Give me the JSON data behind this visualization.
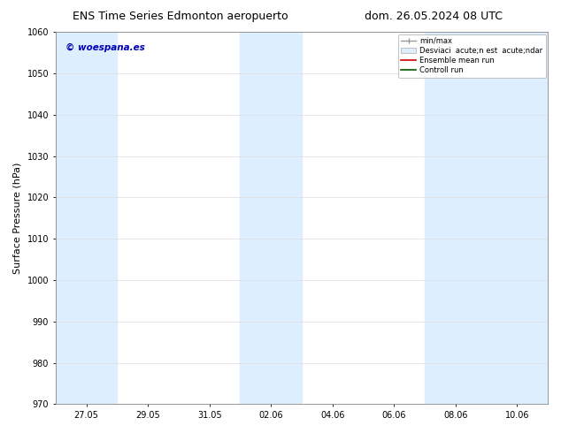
{
  "title_left": "ENS Time Series Edmonton aeropuerto",
  "title_right": "dom. 26.05.2024 08 UTC",
  "ylabel": "Surface Pressure (hPa)",
  "ylim": [
    970,
    1060
  ],
  "yticks": [
    970,
    980,
    990,
    1000,
    1010,
    1020,
    1030,
    1040,
    1050,
    1060
  ],
  "xtick_labels": [
    "27.05",
    "29.05",
    "31.05",
    "02.06",
    "04.06",
    "06.06",
    "08.06",
    "10.06"
  ],
  "xtick_offsets": [
    1,
    3,
    5,
    7,
    9,
    11,
    13,
    15
  ],
  "xlim": [
    0,
    16
  ],
  "watermark": "© woespana.es",
  "watermark_color": "#0000bb",
  "shaded_bands": [
    {
      "xstart": 0,
      "xend": 2
    },
    {
      "xstart": 6,
      "xend": 8
    },
    {
      "xstart": 12,
      "xend": 14
    },
    {
      "xstart": 14,
      "xend": 16
    }
  ],
  "band_color": "#ddeeff",
  "legend_label_minmax": "min/max",
  "legend_label_std": "Desviaci  acute;n est  acute;ndar",
  "legend_label_ensemble": "Ensemble mean run",
  "legend_label_control": "Controll run",
  "bg_color": "#ffffff",
  "grid_color": "#dddddd",
  "title_fontsize": 9,
  "tick_fontsize": 7,
  "ylabel_fontsize": 8
}
